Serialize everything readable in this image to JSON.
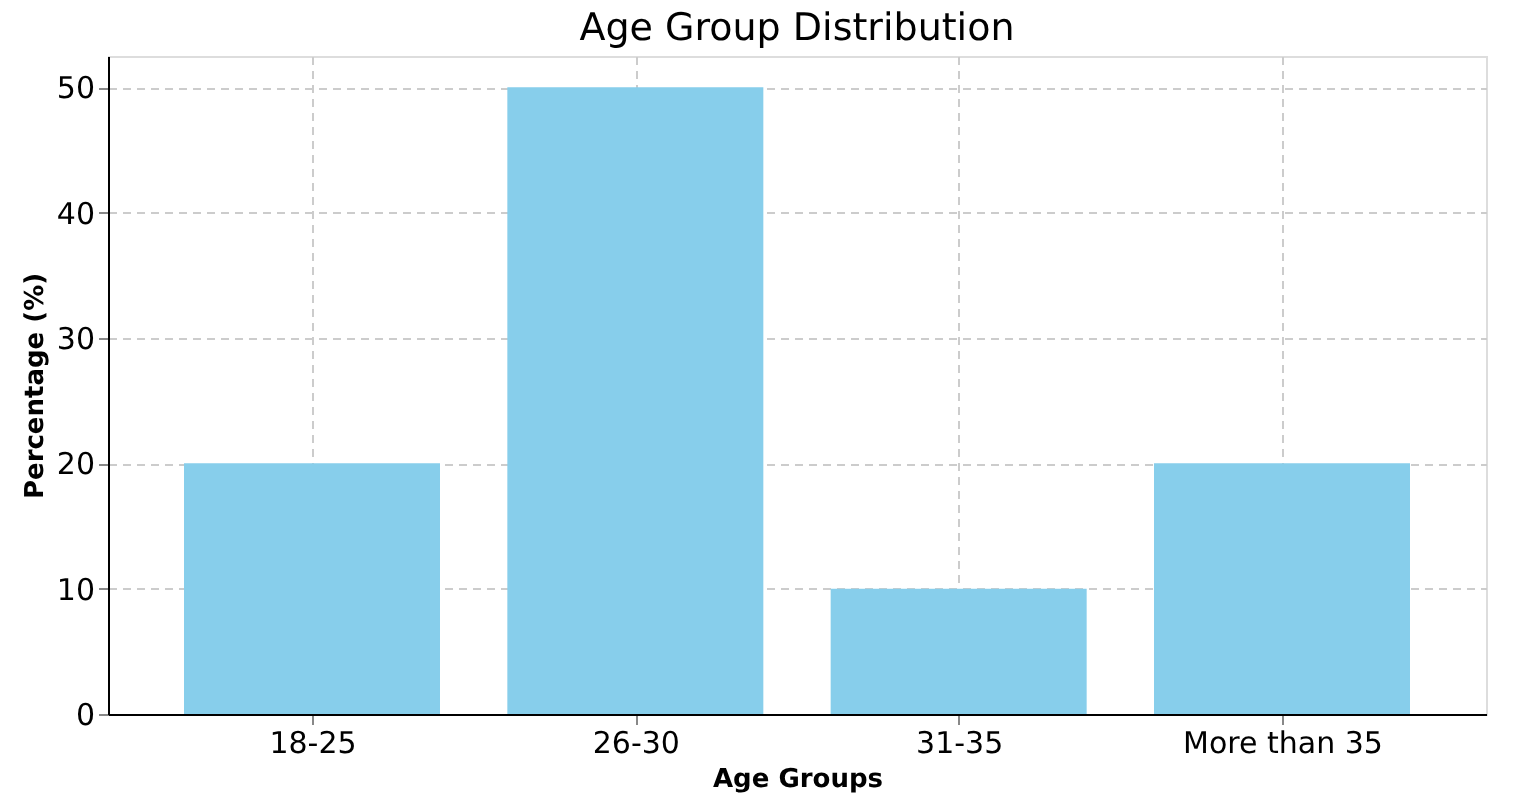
{
  "chart_data": {
    "type": "bar",
    "title": "Age Group Distribution",
    "xlabel": "Age Groups",
    "ylabel": "Percentage (%)",
    "categories": [
      "18-25",
      "26-30",
      "31-35",
      "More than 35"
    ],
    "values": [
      20,
      50,
      10,
      20
    ],
    "color": "#87ceeb",
    "ylim": [
      0,
      52.5
    ],
    "yticks": [
      0,
      10,
      20,
      30,
      40,
      50
    ],
    "grid": true,
    "line_style": "dashed"
  }
}
